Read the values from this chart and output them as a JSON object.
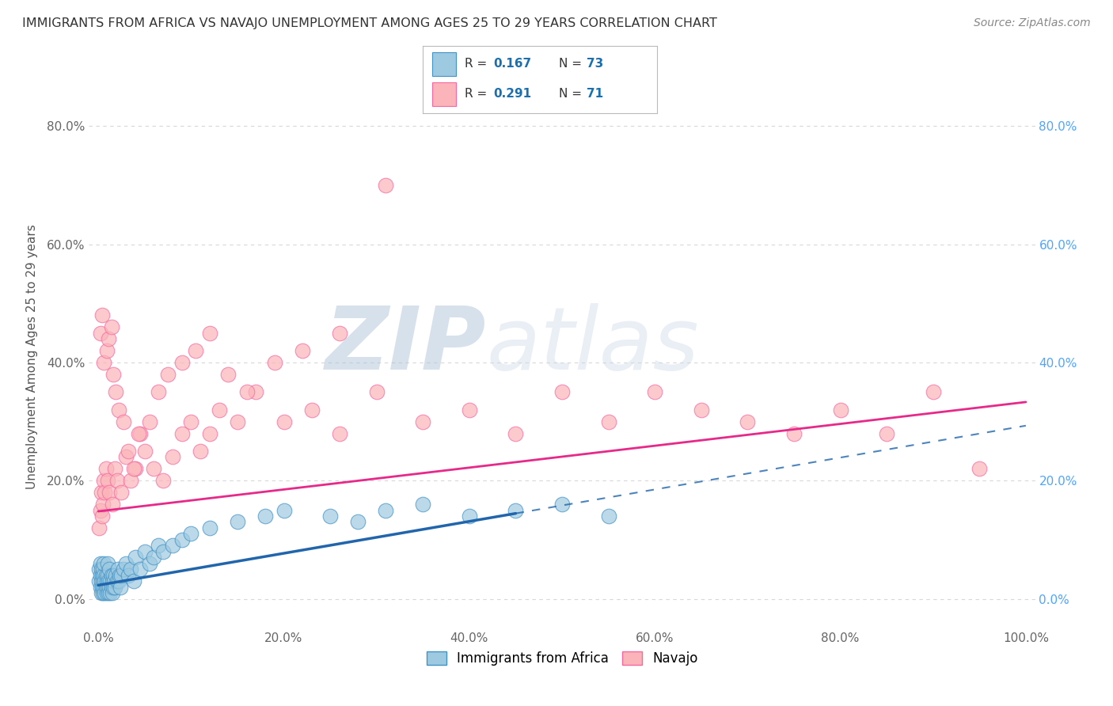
{
  "title": "IMMIGRANTS FROM AFRICA VS NAVAJO UNEMPLOYMENT AMONG AGES 25 TO 29 YEARS CORRELATION CHART",
  "source": "Source: ZipAtlas.com",
  "ylabel": "Unemployment Among Ages 25 to 29 years",
  "xlim": [
    -0.01,
    1.01
  ],
  "ylim": [
    -0.05,
    0.87
  ],
  "xticks": [
    0.0,
    0.2,
    0.4,
    0.6,
    0.8,
    1.0
  ],
  "xtick_labels": [
    "0.0%",
    "20.0%",
    "40.0%",
    "60.0%",
    "80.0%",
    "100.0%"
  ],
  "yticks": [
    0.0,
    0.2,
    0.4,
    0.6,
    0.8
  ],
  "ytick_labels": [
    "0.0%",
    "20.0%",
    "40.0%",
    "60.0%",
    "80.0%"
  ],
  "right_ytick_labels": [
    "80.0%",
    "60.0%",
    "40.0%",
    "20.0%",
    "0.0%"
  ],
  "series": [
    {
      "name": "Immigrants from Africa",
      "color": "#9ecae1",
      "edge_color": "#4292c6",
      "R": 0.167,
      "N": 73,
      "trend_color": "#2166ac",
      "x": [
        0.001,
        0.001,
        0.002,
        0.002,
        0.002,
        0.003,
        0.003,
        0.003,
        0.004,
        0.004,
        0.005,
        0.005,
        0.005,
        0.006,
        0.006,
        0.006,
        0.007,
        0.007,
        0.008,
        0.008,
        0.009,
        0.009,
        0.01,
        0.01,
        0.01,
        0.011,
        0.011,
        0.012,
        0.012,
        0.013,
        0.013,
        0.014,
        0.014,
        0.015,
        0.015,
        0.016,
        0.016,
        0.017,
        0.018,
        0.019,
        0.02,
        0.021,
        0.022,
        0.023,
        0.024,
        0.025,
        0.027,
        0.03,
        0.032,
        0.035,
        0.038,
        0.04,
        0.045,
        0.05,
        0.055,
        0.06,
        0.065,
        0.07,
        0.08,
        0.09,
        0.1,
        0.12,
        0.15,
        0.18,
        0.2,
        0.25,
        0.28,
        0.31,
        0.35,
        0.4,
        0.45,
        0.5,
        0.55
      ],
      "y": [
        0.03,
        0.05,
        0.02,
        0.04,
        0.06,
        0.01,
        0.03,
        0.05,
        0.02,
        0.04,
        0.01,
        0.03,
        0.05,
        0.02,
        0.04,
        0.06,
        0.01,
        0.03,
        0.02,
        0.04,
        0.01,
        0.03,
        0.02,
        0.04,
        0.06,
        0.01,
        0.03,
        0.02,
        0.05,
        0.01,
        0.03,
        0.02,
        0.04,
        0.01,
        0.03,
        0.02,
        0.04,
        0.03,
        0.02,
        0.04,
        0.03,
        0.05,
        0.03,
        0.04,
        0.02,
        0.04,
        0.05,
        0.06,
        0.04,
        0.05,
        0.03,
        0.07,
        0.05,
        0.08,
        0.06,
        0.07,
        0.09,
        0.08,
        0.09,
        0.1,
        0.11,
        0.12,
        0.13,
        0.14,
        0.15,
        0.14,
        0.13,
        0.15,
        0.16,
        0.14,
        0.15,
        0.16,
        0.14
      ]
    },
    {
      "name": "Navajo",
      "color": "#fbb4b9",
      "edge_color": "#f768a1",
      "R": 0.291,
      "N": 71,
      "trend_color": "#e7298a",
      "x": [
        0.001,
        0.002,
        0.003,
        0.004,
        0.005,
        0.006,
        0.007,
        0.008,
        0.01,
        0.012,
        0.015,
        0.018,
        0.02,
        0.025,
        0.03,
        0.035,
        0.04,
        0.045,
        0.05,
        0.06,
        0.07,
        0.08,
        0.09,
        0.1,
        0.11,
        0.12,
        0.13,
        0.15,
        0.17,
        0.2,
        0.23,
        0.26,
        0.3,
        0.35,
        0.4,
        0.45,
        0.5,
        0.55,
        0.6,
        0.65,
        0.7,
        0.75,
        0.8,
        0.85,
        0.9,
        0.95,
        0.002,
        0.004,
        0.006,
        0.009,
        0.011,
        0.014,
        0.016,
        0.019,
        0.022,
        0.027,
        0.032,
        0.038,
        0.043,
        0.055,
        0.065,
        0.075,
        0.09,
        0.105,
        0.12,
        0.14,
        0.16,
        0.19,
        0.22,
        0.26,
        0.31
      ],
      "y": [
        0.12,
        0.15,
        0.18,
        0.14,
        0.16,
        0.2,
        0.18,
        0.22,
        0.2,
        0.18,
        0.16,
        0.22,
        0.2,
        0.18,
        0.24,
        0.2,
        0.22,
        0.28,
        0.25,
        0.22,
        0.2,
        0.24,
        0.28,
        0.3,
        0.25,
        0.28,
        0.32,
        0.3,
        0.35,
        0.3,
        0.32,
        0.28,
        0.35,
        0.3,
        0.32,
        0.28,
        0.35,
        0.3,
        0.35,
        0.32,
        0.3,
        0.28,
        0.32,
        0.28,
        0.35,
        0.22,
        0.45,
        0.48,
        0.4,
        0.42,
        0.44,
        0.46,
        0.38,
        0.35,
        0.32,
        0.3,
        0.25,
        0.22,
        0.28,
        0.3,
        0.35,
        0.38,
        0.4,
        0.42,
        0.45,
        0.38,
        0.35,
        0.4,
        0.42,
        0.45,
        0.7
      ]
    }
  ],
  "blue_trend_x_end_solid": 0.45,
  "blue_trend_x_end_dashed": 1.0,
  "pink_trend_x_end_solid": 1.0,
  "blue_trend_intercept": 0.023,
  "blue_trend_slope": 0.27,
  "pink_trend_intercept": 0.148,
  "pink_trend_slope": 0.185,
  "watermark_top": "ZIP",
  "watermark_bottom": "atlas",
  "watermark_color": "#c8d8e8",
  "background_color": "#ffffff",
  "grid_color": "#d8d8d8",
  "legend_R_color": "#1a6faf",
  "legend_N_color": "#1a6faf",
  "right_axis_color": "#4da6ff"
}
